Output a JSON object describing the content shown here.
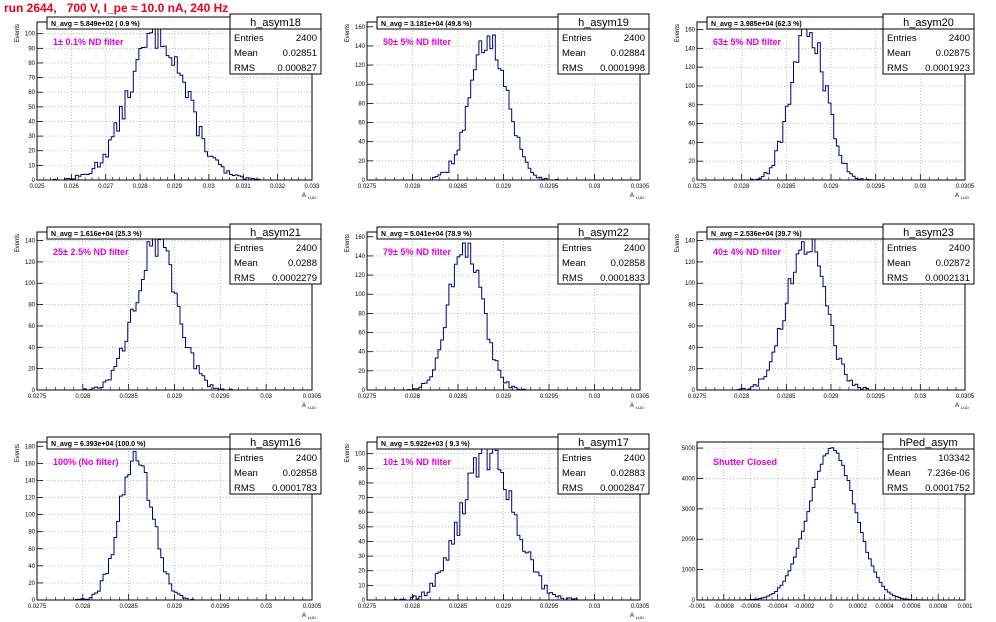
{
  "page": {
    "title": "run 2644,   700 V, I_pe ≈ 10.0 nA, 240 Hz",
    "title_color": "#e8001e",
    "hist_color": "#00007a",
    "annotation_color": "#e000d8"
  },
  "chart_data": [
    {
      "type": "histogram",
      "name": "h_asym18",
      "stats": [
        [
          "Entries",
          "2400"
        ],
        [
          "Mean",
          "0.02851"
        ],
        [
          "RMS",
          "0.000827"
        ]
      ],
      "navg": "N_avg = 5.849e+02 ( 0.9 %)",
      "annotation": "1± 0.1% ND filter",
      "ylabel": "Events",
      "xlabel": "A",
      "xlabel_sub": "LUD",
      "xlim": [
        0.025,
        0.033
      ],
      "xticks": [
        "0.025",
        "0.026",
        "0.027",
        "0.028",
        "0.029",
        "0.03",
        "0.031",
        "0.032",
        "0.033"
      ],
      "ylim": [
        0,
        108
      ],
      "yticks": [
        "0",
        "10",
        "20",
        "30",
        "40",
        "50",
        "60",
        "70",
        "80",
        "90",
        "100"
      ],
      "mean": 0.02851,
      "rms": 0.000827,
      "peak": 100,
      "nbins": 100
    },
    {
      "type": "histogram",
      "name": "h_asym19",
      "stats": [
        [
          "Entries",
          "2400"
        ],
        [
          "Mean",
          "0.02884"
        ],
        [
          "RMS",
          "0.0001998"
        ]
      ],
      "navg": "N_avg = 3.181e+04 (49.8 %)",
      "annotation": "50± 5% ND filter",
      "ylabel": "Events",
      "xlabel": "A",
      "xlabel_sub": "LUD",
      "xlim": [
        0.0275,
        0.0305
      ],
      "xticks": [
        "0.0275",
        "0.028",
        "0.0285",
        "0.029",
        "0.0295",
        "0.03",
        "0.0305"
      ],
      "ylim": [
        0,
        165
      ],
      "yticks": [
        "0",
        "20",
        "40",
        "60",
        "80",
        "100",
        "120",
        "140",
        "160"
      ],
      "mean": 0.02884,
      "rms": 0.0001998,
      "peak": 150,
      "nbins": 100
    },
    {
      "type": "histogram",
      "name": "h_asym20",
      "stats": [
        [
          "Entries",
          "2400"
        ],
        [
          "Mean",
          "0.02875"
        ],
        [
          "RMS",
          "0.0001923"
        ]
      ],
      "navg": "N_avg = 3.985e+04 (62.3 %)",
      "annotation": "63± 5% ND filter",
      "ylabel": "Events",
      "xlabel": "A",
      "xlabel_sub": "LUD",
      "xlim": [
        0.0275,
        0.0305
      ],
      "xticks": [
        "0.0275",
        "0.028",
        "0.0285",
        "0.029",
        "0.0295",
        "0.03",
        "0.0305"
      ],
      "ylim": [
        0,
        168
      ],
      "yticks": [
        "0",
        "20",
        "40",
        "60",
        "80",
        "100",
        "120",
        "140",
        "160"
      ],
      "mean": 0.02875,
      "rms": 0.0001923,
      "peak": 160,
      "nbins": 100
    },
    {
      "type": "histogram",
      "name": "h_asym21",
      "stats": [
        [
          "Entries",
          "2400"
        ],
        [
          "Mean",
          "0.0288"
        ],
        [
          "RMS",
          "0.0002279"
        ]
      ],
      "navg": "N_avg = 1.616e+04 (25.3 %)",
      "annotation": "25± 2.5% ND filter",
      "ylabel": "Events",
      "xlabel": "A",
      "xlabel_sub": "LUD",
      "xlim": [
        0.0275,
        0.0305
      ],
      "xticks": [
        "0.0275",
        "0.028",
        "0.0285",
        "0.029",
        "0.0295",
        "0.03",
        "0.0305"
      ],
      "ylim": [
        0,
        148
      ],
      "yticks": [
        "0",
        "20",
        "40",
        "60",
        "80",
        "100",
        "120",
        "140"
      ],
      "mean": 0.0288,
      "rms": 0.0002279,
      "peak": 138,
      "nbins": 100
    },
    {
      "type": "histogram",
      "name": "h_asym22",
      "stats": [
        [
          "Entries",
          "2400"
        ],
        [
          "Mean",
          "0.02858"
        ],
        [
          "RMS",
          "0.0001833"
        ]
      ],
      "navg": "N_avg = 5.041e+04 (78.9 %)",
      "annotation": "79± 5% ND filter",
      "ylabel": "Events",
      "xlabel": "A",
      "xlabel_sub": "LUD",
      "xlim": [
        0.0275,
        0.0305
      ],
      "xticks": [
        "0.0275",
        "0.028",
        "0.0285",
        "0.029",
        "0.0295",
        "0.03",
        "0.0305"
      ],
      "ylim": [
        0,
        165
      ],
      "yticks": [
        "0",
        "20",
        "40",
        "60",
        "80",
        "100",
        "120",
        "140",
        "160"
      ],
      "mean": 0.02858,
      "rms": 0.0001833,
      "peak": 150,
      "nbins": 100
    },
    {
      "type": "histogram",
      "name": "h_asym23",
      "stats": [
        [
          "Entries",
          "2400"
        ],
        [
          "Mean",
          "0.02872"
        ],
        [
          "RMS",
          "0.0002131"
        ]
      ],
      "navg": "N_avg = 2.536e+04 (39.7 %)",
      "annotation": "40± 4% ND filter",
      "ylabel": "Events",
      "xlabel": "A",
      "xlabel_sub": "LUD",
      "xlim": [
        0.0275,
        0.0305
      ],
      "xticks": [
        "0.0275",
        "0.028",
        "0.0285",
        "0.029",
        "0.0295",
        "0.03",
        "0.0305"
      ],
      "ylim": [
        0,
        148
      ],
      "yticks": [
        "0",
        "20",
        "40",
        "60",
        "80",
        "100",
        "120",
        "140"
      ],
      "mean": 0.02872,
      "rms": 0.0002131,
      "peak": 140,
      "nbins": 100
    },
    {
      "type": "histogram",
      "name": "h_asym16",
      "stats": [
        [
          "Entries",
          "2400"
        ],
        [
          "Mean",
          "0.02858"
        ],
        [
          "RMS",
          "0.0001783"
        ]
      ],
      "navg": "N_avg = 6.393e+04 (100.0 %)",
      "annotation": "100% (No filter)",
      "ylabel": "Events",
      "xlabel": "A",
      "xlabel_sub": "LUD",
      "xlim": [
        0.0275,
        0.0305
      ],
      "xticks": [
        "0.0275",
        "0.028",
        "0.0285",
        "0.029",
        "0.0295",
        "0.03",
        "0.0305"
      ],
      "ylim": [
        0,
        185
      ],
      "yticks": [
        "0",
        "20",
        "40",
        "60",
        "80",
        "100",
        "120",
        "140",
        "160",
        "180"
      ],
      "mean": 0.02858,
      "rms": 0.0001783,
      "peak": 170,
      "nbins": 100
    },
    {
      "type": "histogram",
      "name": "h_asym17",
      "stats": [
        [
          "Entries",
          "2400"
        ],
        [
          "Mean",
          "0.02883"
        ],
        [
          "RMS",
          "0.0002847"
        ]
      ],
      "navg": "N_avg = 5.922e+03 ( 9.3 %)",
      "annotation": "10± 1% ND filter",
      "ylabel": "Events",
      "xlabel": "A",
      "xlabel_sub": "LUD",
      "xlim": [
        0.0275,
        0.0305
      ],
      "xticks": [
        "0.0275",
        "0.028",
        "0.0285",
        "0.029",
        "0.0295",
        "0.03",
        "0.0305"
      ],
      "ylim": [
        0,
        108
      ],
      "yticks": [
        "0",
        "10",
        "20",
        "30",
        "40",
        "50",
        "60",
        "70",
        "80",
        "90",
        "100"
      ],
      "mean": 0.02883,
      "rms": 0.0002847,
      "peak": 100,
      "nbins": 100
    },
    {
      "type": "histogram",
      "name": "hPed_asym",
      "stats": [
        [
          "Entries",
          "103342"
        ],
        [
          "Mean",
          "7.236e-06"
        ],
        [
          "RMS",
          "0.0001752"
        ]
      ],
      "navg": "",
      "annotation": "Shutter Closed",
      "ylabel": "",
      "xlabel": "",
      "xlabel_sub": "",
      "xlim": [
        -0.001,
        0.001
      ],
      "xticks": [
        "-0.001",
        "-0.0008",
        "-0.0006",
        "-0.0004",
        "-0.0002",
        "0",
        "0.0002",
        "0.0004",
        "0.0006",
        "0.0008",
        "0.001"
      ],
      "ylim": [
        0,
        5200
      ],
      "yticks": [
        "0",
        "1000",
        "2000",
        "3000",
        "4000",
        "5000"
      ],
      "mean": 7.236e-06,
      "rms": 0.0001752,
      "peak": 4950,
      "nbins": 100
    }
  ]
}
